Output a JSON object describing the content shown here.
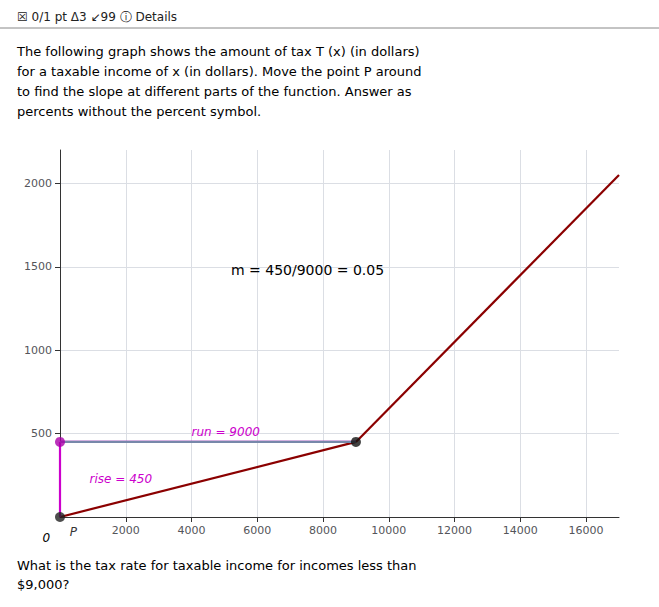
{
  "chart_data": {
    "type": "line",
    "title": "☒ 0/1 pt Δ3 ↙99 ⓘ Details",
    "subtitle": "The following graph shows the amount of tax T (x) (in dollars)\nfor a taxable income of x (in dollars). Move the point P around\nto find the slope at different parts of the function. Answer as\npercents without the percent symbol.",
    "caption": "What is the tax rate for taxable income for incomes less than\n$9,000?",
    "xlim": [
      0,
      17000
    ],
    "ylim": [
      0,
      2200
    ],
    "xticks": [
      2000,
      4000,
      6000,
      8000,
      10000,
      12000,
      14000,
      16000
    ],
    "yticks": [
      500,
      1000,
      1500,
      2000
    ],
    "grid": true,
    "series": [
      {
        "type": "line",
        "color": "#8B0000",
        "x": [
          0,
          9000
        ],
        "values": [
          0,
          450
        ]
      },
      {
        "type": "line",
        "color": "#8B0000",
        "x": [
          9000,
          17000
        ],
        "values": [
          450,
          2050
        ]
      },
      {
        "type": "line",
        "color": "#cc00cc",
        "x": [
          0,
          9000
        ],
        "values": [
          450,
          450
        ]
      },
      {
        "type": "line",
        "color": "#cc00cc",
        "x": [
          0,
          0
        ],
        "values": [
          0,
          450
        ]
      },
      {
        "type": "line",
        "color": "#7788aa",
        "x": [
          0,
          9000
        ],
        "values": [
          450,
          450
        ]
      },
      {
        "type": "scatter",
        "color": "#222222",
        "x": [
          0
        ],
        "values": [
          0
        ]
      },
      {
        "type": "scatter",
        "color": "#aa00aa",
        "x": [
          0
        ],
        "values": [
          450
        ]
      },
      {
        "type": "scatter",
        "color": "#111111",
        "x": [
          9000
        ],
        "values": [
          450
        ]
      }
    ],
    "annotations": [
      {
        "text": "P",
        "x": 300,
        "y": -55,
        "color": "#333333"
      },
      {
        "text": "run = 9000",
        "x": 4000,
        "y": 510,
        "color": "#cc00cc"
      },
      {
        "text": "rise = 450",
        "x": 900,
        "y": 230,
        "color": "#cc00cc"
      },
      {
        "text": "m = 450/9000 = 0.05",
        "x": 5200,
        "y": 1480,
        "color": "#000000"
      },
      {
        "text": "0",
        "x": -300,
        "y": -90,
        "color": "#000000"
      }
    ]
  }
}
